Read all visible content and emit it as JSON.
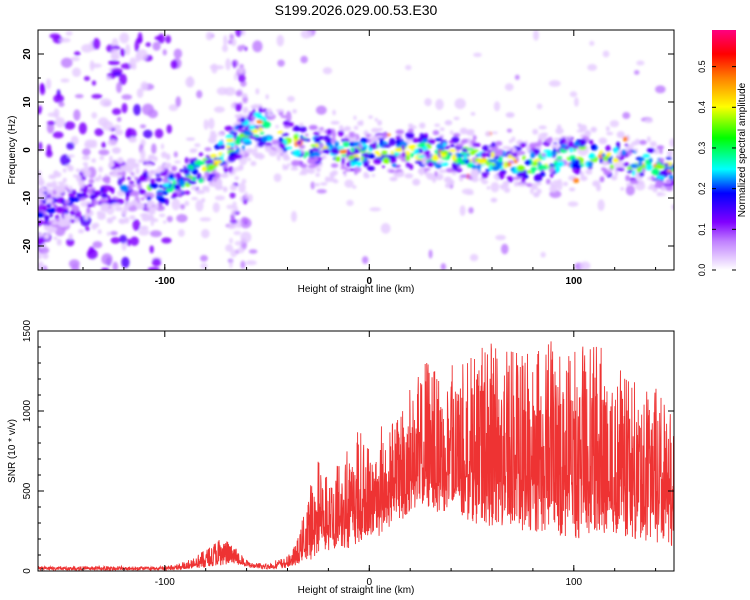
{
  "figure": {
    "title": "S199.2026.029.00.53.E30"
  },
  "chart_data": [
    {
      "type": "heatmap",
      "name": "spectrogram",
      "title": "S199.2026.029.00.53.E30",
      "xlabel": "Height of straight line (km)",
      "ylabel": "Frequency (Hz)",
      "xlim": [
        -162,
        149
      ],
      "ylim": [
        -25,
        25
      ],
      "x_ticks": [
        -100,
        0,
        100
      ],
      "y_ticks": [
        -20,
        -10,
        0,
        10,
        20
      ],
      "colorbar": {
        "label": "Normalized spectral amplitude",
        "range": [
          0,
          0.59
        ],
        "ticks": [
          "0.0",
          "0.1",
          "0.2",
          "0.3",
          "0.4",
          "0.5"
        ],
        "tick_values": [
          0.0,
          0.1,
          0.2,
          0.3,
          0.4,
          0.5
        ],
        "colormap": [
          "#ffffff",
          "#8000ff",
          "#0000ff",
          "#00ffff",
          "#00ff00",
          "#ffff00",
          "#ff8000",
          "#ff0000",
          "#ff0080"
        ]
      },
      "ridge": {
        "description_points_x": [
          -162,
          -140,
          -120,
          -100,
          -85,
          -75,
          -65,
          -55,
          -45,
          -35,
          -20,
          0,
          20,
          40,
          60,
          80,
          100,
          120,
          149
        ],
        "description_points_y": [
          -13,
          -10,
          -8,
          -8,
          -5,
          -2,
          2,
          5,
          4,
          1,
          0,
          -1,
          0,
          -1,
          -2,
          -3,
          -1,
          -2,
          -4
        ]
      }
    },
    {
      "type": "line",
      "name": "snr",
      "xlabel": "Height of straight line (km)",
      "ylabel": "SNR (10 * v/v)",
      "xlim": [
        -162,
        149
      ],
      "ylim": [
        0,
        1500
      ],
      "x_ticks": [
        -100,
        0,
        100
      ],
      "y_ticks": [
        0,
        500,
        1000,
        1500
      ],
      "series": [
        {
          "color": "#ee3333",
          "envelope_x": [
            -162,
            -100,
            -90,
            -80,
            -72,
            -65,
            -58,
            -50,
            -40,
            -35,
            -30,
            -25,
            -20,
            -15,
            -10,
            -5,
            0,
            5,
            10,
            15,
            18,
            20,
            25,
            30,
            40,
            50,
            60,
            70,
            80,
            90,
            100,
            110,
            120,
            130,
            140,
            149
          ],
          "envelope_min": [
            5,
            5,
            10,
            20,
            40,
            40,
            20,
            10,
            20,
            30,
            60,
            100,
            120,
            150,
            140,
            180,
            200,
            220,
            280,
            300,
            300,
            380,
            400,
            370,
            370,
            300,
            280,
            250,
            250,
            230,
            200,
            220,
            220,
            180,
            180,
            150
          ],
          "envelope_max": [
            30,
            30,
            60,
            140,
            210,
            140,
            50,
            50,
            90,
            200,
            480,
            700,
            650,
            700,
            800,
            900,
            780,
            900,
            950,
            1000,
            1100,
            1150,
            1250,
            1380,
            1300,
            1350,
            1450,
            1450,
            1350,
            1510,
            1380,
            1450,
            1350,
            1180,
            1150,
            1050
          ],
          "mean": [
            15,
            15,
            30,
            70,
            110,
            80,
            30,
            25,
            50,
            90,
            200,
            280,
            300,
            330,
            350,
            380,
            400,
            430,
            480,
            530,
            560,
            620,
            650,
            650,
            620,
            620,
            630,
            620,
            600,
            610,
            600,
            600,
            570,
            540,
            520,
            500
          ]
        }
      ]
    }
  ]
}
